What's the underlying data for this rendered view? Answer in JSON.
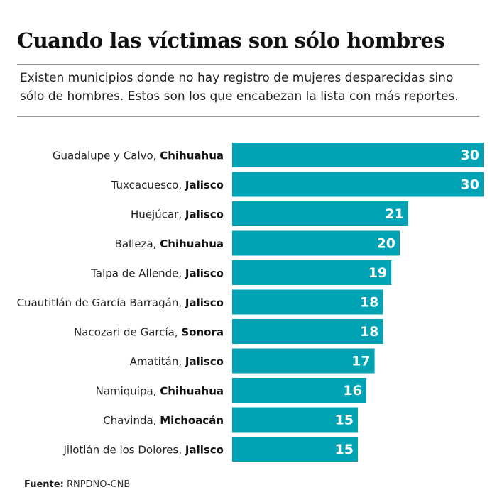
{
  "chart_data": {
    "type": "bar",
    "orientation": "horizontal",
    "title": "Cuando las víctimas son sólo hombres",
    "subtitle_lines": [
      "Existen municipios donde no hay registro de mujeres desparecidas sino",
      "sólo de hombres. Estos son los que encabezan la lista con más reportes."
    ],
    "categories": [
      {
        "municipio": "Guadalupe y Calvo",
        "estado": "Chihuahua"
      },
      {
        "municipio": "Tuxcacuesco",
        "estado": "Jalisco"
      },
      {
        "municipio": "Huejúcar",
        "estado": "Jalisco"
      },
      {
        "municipio": "Balleza",
        "estado": "Chihuahua"
      },
      {
        "municipio": "Talpa de Allende",
        "estado": "Jalisco"
      },
      {
        "municipio": "Cuautitlán de García Barragán",
        "estado": "Jalisco"
      },
      {
        "municipio": "Nacozari de García",
        "estado": "Sonora"
      },
      {
        "municipio": "Amatitán",
        "estado": "Jalisco"
      },
      {
        "municipio": "Namiquipa",
        "estado": "Chihuahua"
      },
      {
        "municipio": "Chavinda",
        "estado": "Michoacán"
      },
      {
        "municipio": "Jilotlán de los Dolores",
        "estado": "Jalisco"
      }
    ],
    "values": [
      30,
      30,
      21,
      20,
      19,
      18,
      18,
      17,
      16,
      15,
      15
    ],
    "xlim": [
      0,
      30
    ],
    "bar_color": "#00a3b4",
    "value_label_color": "#ffffff",
    "grid": false,
    "legend": "none"
  },
  "source": {
    "label": "Fuente:",
    "text": "RNPDNO-CNB"
  }
}
